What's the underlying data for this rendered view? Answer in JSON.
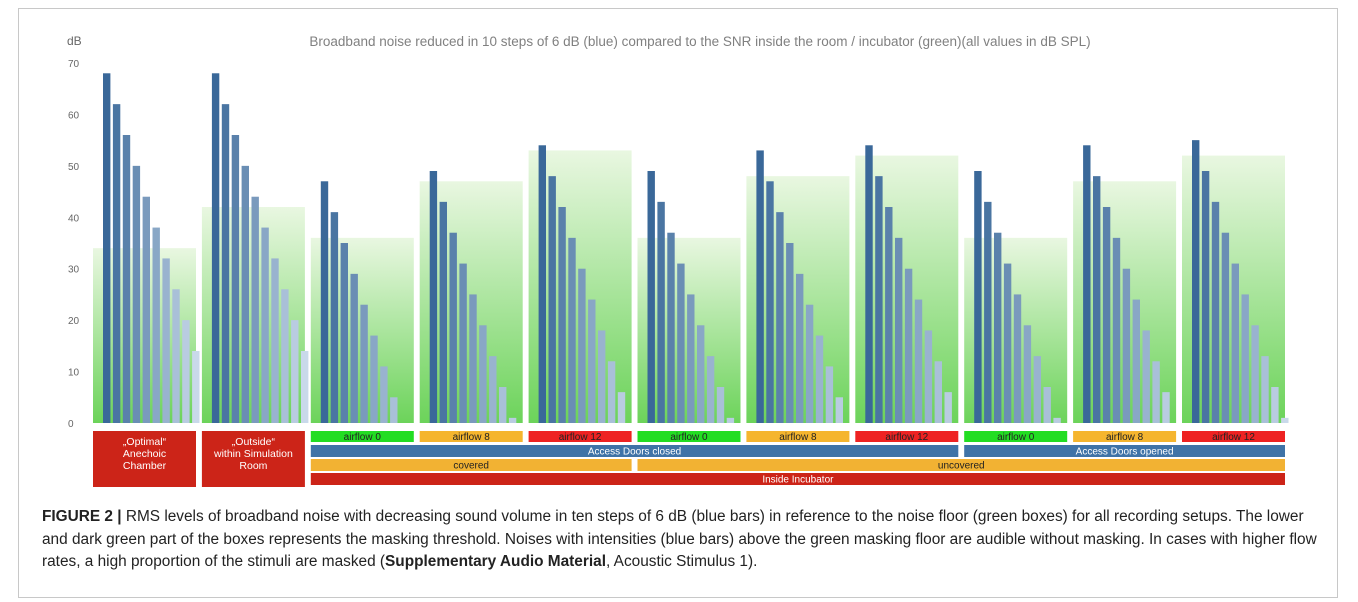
{
  "chart_data": {
    "type": "bar",
    "title": "Broadband noise reduced in 10 steps of 6 dB (blue) compared to the SNR inside the room / incubator (green)(all values in dB SPL)",
    "ylabel": "dB",
    "ylim": [
      0,
      70
    ],
    "yticks": [
      0,
      10,
      20,
      30,
      40,
      50,
      60,
      70
    ],
    "grid": false,
    "categories": [
      "„Optimal“ Anechoic Chamber",
      "„Outside“ within Simulation Room",
      "airflow 0",
      "airflow 8",
      "airflow 12",
      "airflow 0",
      "airflow 8",
      "airflow 12",
      "airflow 0",
      "airflow 8",
      "airflow 12"
    ],
    "noise_floor": [
      34,
      42,
      36,
      47,
      53,
      36,
      48,
      52,
      36,
      47,
      52
    ],
    "blue_steps": [
      [
        68,
        62,
        56,
        50,
        44,
        38,
        32,
        26,
        20,
        14
      ],
      [
        68,
        62,
        56,
        50,
        44,
        38,
        32,
        26,
        20,
        14
      ],
      [
        47,
        41,
        35,
        29,
        23,
        17,
        11,
        5
      ],
      [
        49,
        43,
        37,
        31,
        25,
        19,
        13,
        7,
        1
      ],
      [
        54,
        48,
        42,
        36,
        30,
        24,
        18,
        12,
        6
      ],
      [
        49,
        43,
        37,
        31,
        25,
        19,
        13,
        7,
        1
      ],
      [
        53,
        47,
        41,
        35,
        29,
        23,
        17,
        11,
        5
      ],
      [
        54,
        48,
        42,
        36,
        30,
        24,
        18,
        12,
        6
      ],
      [
        49,
        43,
        37,
        31,
        25,
        19,
        13,
        7,
        1
      ],
      [
        54,
        48,
        42,
        36,
        30,
        24,
        18,
        12,
        6
      ],
      [
        55,
        49,
        43,
        37,
        31,
        25,
        19,
        13,
        7,
        1
      ]
    ],
    "row1": [
      {
        "label": "„Optimal“\nAnechoic\nChamber",
        "color": "#cc2418"
      },
      {
        "label": "„Outside“\nwithin Simulation\nRoom",
        "color": "#cc2418"
      },
      {
        "label": "airflow 0",
        "color": "#22dd22"
      },
      {
        "label": "airflow 8",
        "color": "#f5b52e"
      },
      {
        "label": "airflow 12",
        "color": "#ee2222"
      },
      {
        "label": "airflow 0",
        "color": "#22dd22"
      },
      {
        "label": "airflow 8",
        "color": "#f5b52e"
      },
      {
        "label": "airflow 12",
        "color": "#ee2222"
      },
      {
        "label": "airflow 0",
        "color": "#22dd22"
      },
      {
        "label": "airflow 8",
        "color": "#f5b52e"
      },
      {
        "label": "airflow 12",
        "color": "#ee2222"
      }
    ],
    "row2": [
      {
        "label": "Access Doors closed",
        "from": 2,
        "to": 7,
        "color": "#3f73a7"
      },
      {
        "label": "Access Doors opened",
        "from": 8,
        "to": 10,
        "color": "#3f73a7"
      }
    ],
    "row3": [
      {
        "label": "covered",
        "from": 2,
        "to": 4,
        "color": "#f2b233"
      },
      {
        "label": "uncovered",
        "from": 5,
        "to": 10,
        "color": "#f2b233"
      }
    ],
    "row4": [
      {
        "label": "Inside Incubator",
        "from": 2,
        "to": 10,
        "color": "#cc2418"
      }
    ],
    "colors": {
      "blue_dark": "#3a6899",
      "blue_light": "#c9d9ea",
      "green_top": "#e9f7e1",
      "green_bottom": "#6cd35a"
    }
  },
  "caption": {
    "label": "FIGURE 2 |",
    "text1": " RMS levels of broadband noise with decreasing sound volume in ten steps of 6 dB (blue bars) in reference to the noise floor (green boxes) for all recording setups. The lower and dark green part of the boxes represents the masking threshold. Noises with intensities (blue bars) above the green masking floor are audible without masking. In cases with higher flow rates, a high proportion of the stimuli are masked (",
    "bold": "Supplementary Audio Material",
    "text2": ", Acoustic Stimulus 1)."
  }
}
